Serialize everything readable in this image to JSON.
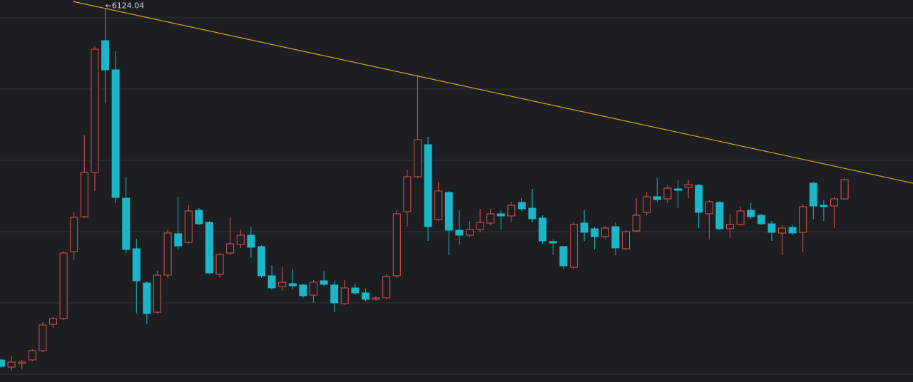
{
  "chart_data": {
    "type": "candlestick",
    "up_color": "#e0524f",
    "down_color": "#1bb7c8",
    "ylim": [
      890,
      6250
    ],
    "ygrid": [
      1000,
      2000,
      3000,
      4000,
      5000,
      6000
    ],
    "high_marker": {
      "value": 6124.04,
      "label": "←6124.04"
    },
    "open": [
      1200,
      1100,
      1150,
      1200,
      1330,
      1700,
      1780,
      2720,
      3210,
      3830,
      5680,
      5270,
      3470,
      2760,
      2280,
      1870,
      2390,
      2970,
      2850,
      3300,
      3130,
      2400,
      2700,
      2820,
      2950,
      2790,
      2380,
      2230,
      2270,
      2250,
      2110,
      2310,
      2250,
      1990,
      2210,
      2140,
      2050,
      2070,
      2380,
      3280,
      3770,
      4220,
      3170,
      3550,
      3020,
      2950,
      3030,
      3120,
      3250,
      3220,
      3410,
      3330,
      3190,
      2860,
      2790,
      2500,
      3120,
      3040,
      2930,
      3070,
      2760,
      3010,
      3270,
      3490,
      3460,
      3600,
      3620,
      3650,
      3250,
      3410,
      3040,
      3100,
      3300,
      3230,
      3110,
      2980,
      3060,
      2990,
      3680,
      3370,
      3360,
      3460
    ],
    "high": [
      1220,
      1250,
      1200,
      1350,
      1730,
      1800,
      2730,
      3270,
      4350,
      5600,
      6124.04,
      5530,
      3770,
      2900,
      2300,
      2450,
      3030,
      3490,
      3370,
      3330,
      3150,
      2700,
      3200,
      3030,
      3070,
      2810,
      2530,
      2500,
      2470,
      2270,
      2320,
      2450,
      2310,
      2320,
      2270,
      2200,
      2090,
      2400,
      3300,
      3870,
      5200,
      4330,
      3700,
      3570,
      3300,
      3150,
      3320,
      3320,
      3300,
      3420,
      3470,
      3600,
      3230,
      2890,
      2800,
      3130,
      3300,
      3070,
      3080,
      3130,
      3020,
      3470,
      3550,
      3750,
      3650,
      3720,
      3730,
      3670,
      3440,
      3430,
      3250,
      3350,
      3400,
      3250,
      3150,
      3090,
      3100,
      3380,
      3700,
      3440,
      3490,
      3750
    ],
    "low": [
      1090,
      1050,
      1070,
      1180,
      1310,
      1650,
      1760,
      2600,
      3190,
      3570,
      4800,
      3400,
      2700,
      1850,
      1700,
      1850,
      2350,
      2750,
      2830,
      3090,
      2400,
      2350,
      2670,
      2770,
      2630,
      2350,
      2180,
      2170,
      2190,
      2070,
      2000,
      2230,
      1870,
      1970,
      2110,
      2020,
      2030,
      2050,
      2350,
      3070,
      3750,
      2870,
      3150,
      2670,
      2820,
      2920,
      2990,
      3090,
      3030,
      3130,
      3290,
      3130,
      2830,
      2670,
      2470,
      2470,
      2870,
      2750,
      2890,
      2670,
      2740,
      2990,
      3230,
      3410,
      3400,
      3330,
      3470,
      3050,
      2890,
      3020,
      2910,
      3080,
      3180,
      3090,
      2870,
      2670,
      2950,
      2710,
      3170,
      3150,
      3050,
      3440
    ],
    "close": [
      1110,
      1170,
      1170,
      1330,
      1690,
      1780,
      2700,
      3200,
      3830,
      5560,
      5270,
      3480,
      2750,
      2310,
      1850,
      2390,
      2980,
      2800,
      3290,
      3110,
      2420,
      2680,
      2830,
      2950,
      2780,
      2380,
      2210,
      2290,
      2240,
      2100,
      2290,
      2260,
      2000,
      2210,
      2140,
      2050,
      2070,
      2370,
      3250,
      3770,
      4290,
      3070,
      3570,
      3020,
      2950,
      3030,
      3130,
      3250,
      3220,
      3370,
      3320,
      3180,
      2870,
      2840,
      2520,
      3100,
      2990,
      2930,
      3050,
      2770,
      3000,
      3230,
      3490,
      3450,
      3610,
      3580,
      3660,
      3270,
      3420,
      3040,
      3100,
      3290,
      3210,
      3110,
      2990,
      3050,
      2980,
      3350,
      3360,
      3350,
      3460,
      3730
    ]
  }
}
